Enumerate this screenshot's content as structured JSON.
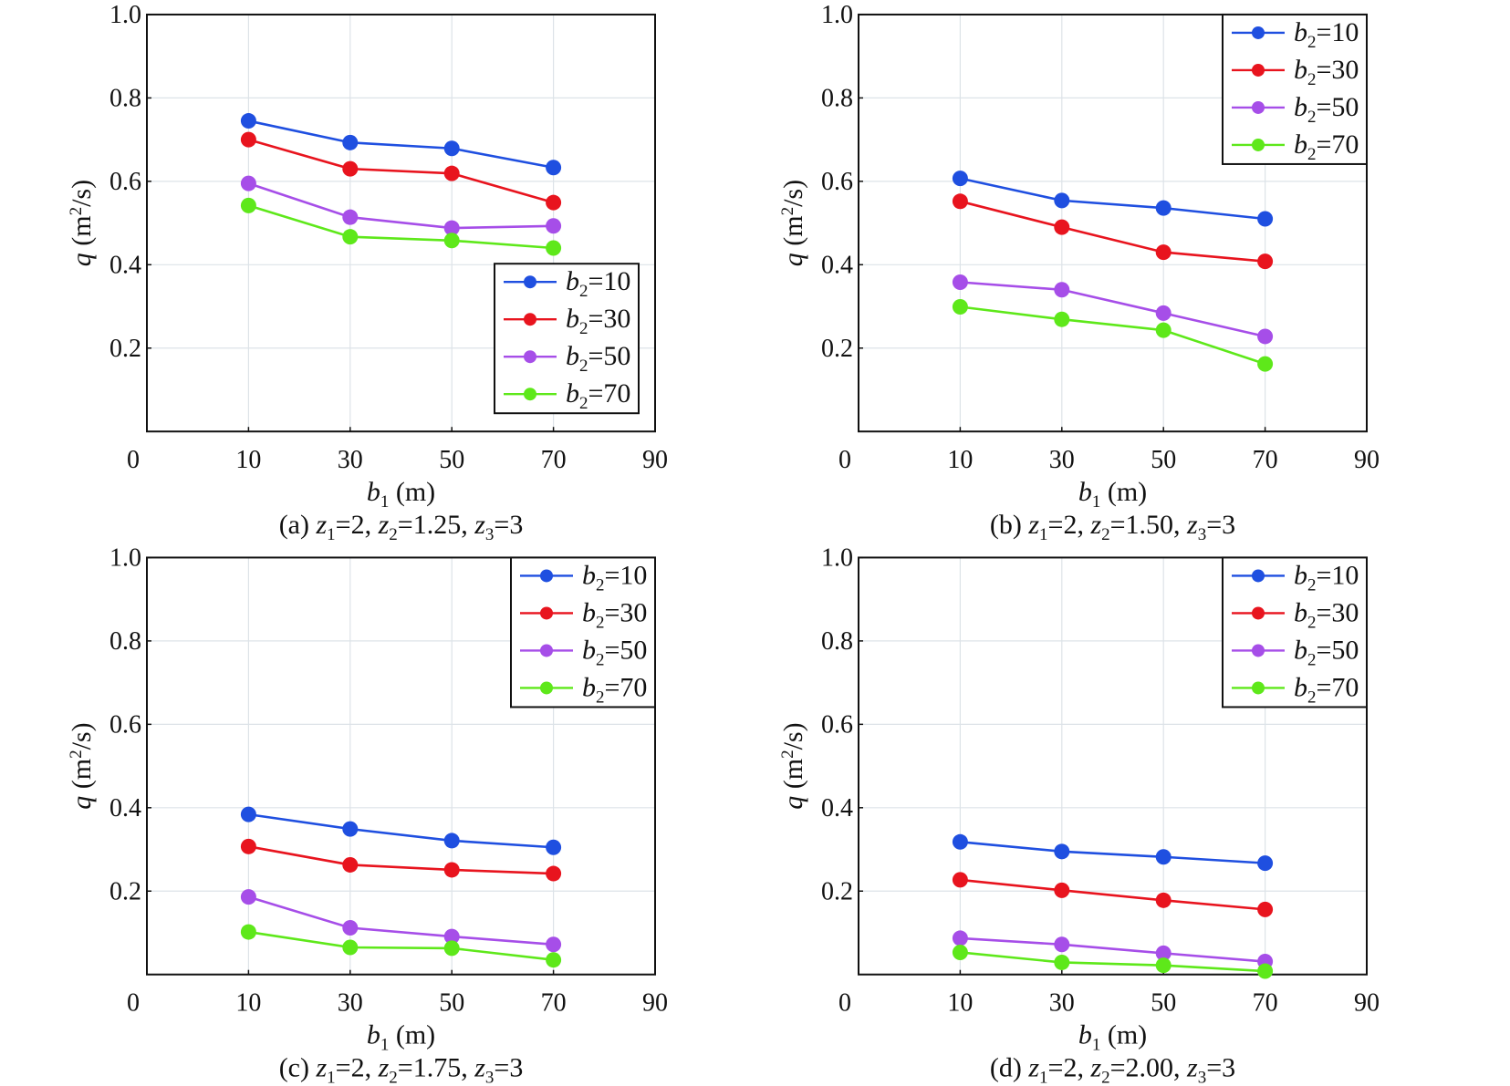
{
  "chart_data": [
    {
      "id": "a",
      "type": "line",
      "caption": {
        "prefix": "(a) ",
        "z1": "2",
        "z2": "1.25",
        "z3": "3"
      },
      "xlabel": {
        "var": "b",
        "sub": "1",
        "unit": " (m)"
      },
      "ylabel": {
        "var": "q",
        "unit_pre": " (m",
        "sup": "2",
        "unit_post": "/s)"
      },
      "x_tick_labels": [
        "0",
        "10",
        "30",
        "50",
        "70",
        "90"
      ],
      "x": [
        10,
        30,
        50,
        70
      ],
      "ylim": [
        0,
        1.0
      ],
      "y_ticks": [
        "0.2",
        "0.4",
        "0.6",
        "0.8",
        "1.0"
      ],
      "grid": true,
      "legend_position": "bottom-right",
      "series": [
        {
          "name": "b2=10",
          "label_var": "b",
          "label_sub": "2",
          "label_val": "=10",
          "color": "#1f4fe0",
          "values": [
            0.745,
            0.693,
            0.679,
            0.633
          ]
        },
        {
          "name": "b2=30",
          "label_var": "b",
          "label_sub": "2",
          "label_val": "=30",
          "color": "#e8141e",
          "values": [
            0.7,
            0.63,
            0.619,
            0.549
          ]
        },
        {
          "name": "b2=50",
          "label_var": "b",
          "label_sub": "2",
          "label_val": "=50",
          "color": "#a64ee8",
          "values": [
            0.595,
            0.514,
            0.488,
            0.493
          ]
        },
        {
          "name": "b2=70",
          "label_var": "b",
          "label_sub": "2",
          "label_val": "=70",
          "color": "#5ee81a",
          "values": [
            0.542,
            0.467,
            0.458,
            0.44
          ]
        }
      ]
    },
    {
      "id": "b",
      "type": "line",
      "caption": {
        "prefix": "(b) ",
        "z1": "2",
        "z2": "1.50",
        "z3": "3"
      },
      "xlabel": {
        "var": "b",
        "sub": "1",
        "unit": " (m)"
      },
      "ylabel": {
        "var": "q",
        "unit_pre": " (m",
        "sup": "2",
        "unit_post": "/s)"
      },
      "x_tick_labels": [
        "0",
        "10",
        "30",
        "50",
        "70",
        "90"
      ],
      "x": [
        10,
        30,
        50,
        70
      ],
      "ylim": [
        0,
        1.0
      ],
      "y_ticks": [
        "0.2",
        "0.4",
        "0.6",
        "0.8",
        "1.0"
      ],
      "grid": true,
      "legend_position": "top-right",
      "series": [
        {
          "name": "b2=10",
          "label_var": "b",
          "label_sub": "2",
          "label_val": "=10",
          "color": "#1f4fe0",
          "values": [
            0.607,
            0.554,
            0.536,
            0.51
          ]
        },
        {
          "name": "b2=30",
          "label_var": "b",
          "label_sub": "2",
          "label_val": "=30",
          "color": "#e8141e",
          "values": [
            0.552,
            0.49,
            0.43,
            0.408
          ]
        },
        {
          "name": "b2=50",
          "label_var": "b",
          "label_sub": "2",
          "label_val": "=50",
          "color": "#a64ee8",
          "values": [
            0.358,
            0.34,
            0.284,
            0.228
          ]
        },
        {
          "name": "b2=70",
          "label_var": "b",
          "label_sub": "2",
          "label_val": "=70",
          "color": "#5ee81a",
          "values": [
            0.299,
            0.269,
            0.243,
            0.162
          ]
        }
      ]
    },
    {
      "id": "c",
      "type": "line",
      "caption": {
        "prefix": "(c) ",
        "z1": "2",
        "z2": "1.75",
        "z3": "3"
      },
      "xlabel": {
        "var": "b",
        "sub": "1",
        "unit": " (m)"
      },
      "ylabel": {
        "var": "q",
        "unit_pre": " (m",
        "sup": "2",
        "unit_post": "/s)"
      },
      "x_tick_labels": [
        "0",
        "10",
        "30",
        "50",
        "70",
        "90"
      ],
      "x": [
        10,
        30,
        50,
        70
      ],
      "ylim": [
        0,
        1.0
      ],
      "y_ticks": [
        "0.2",
        "0.4",
        "0.6",
        "0.8",
        "1.0"
      ],
      "grid": true,
      "legend_position": "top-right",
      "series": [
        {
          "name": "b2=10",
          "label_var": "b",
          "label_sub": "2",
          "label_val": "=10",
          "color": "#1f4fe0",
          "values": [
            0.384,
            0.349,
            0.321,
            0.305
          ]
        },
        {
          "name": "b2=30",
          "label_var": "b",
          "label_sub": "2",
          "label_val": "=30",
          "color": "#e8141e",
          "values": [
            0.307,
            0.263,
            0.251,
            0.242
          ]
        },
        {
          "name": "b2=50",
          "label_var": "b",
          "label_sub": "2",
          "label_val": "=50",
          "color": "#a64ee8",
          "values": [
            0.186,
            0.112,
            0.091,
            0.072
          ]
        },
        {
          "name": "b2=70",
          "label_var": "b",
          "label_sub": "2",
          "label_val": "=70",
          "color": "#5ee81a",
          "values": [
            0.102,
            0.065,
            0.063,
            0.035
          ]
        }
      ]
    },
    {
      "id": "d",
      "type": "line",
      "caption": {
        "prefix": "(d) ",
        "z1": "2",
        "z2": "2.00",
        "z3": "3"
      },
      "xlabel": {
        "var": "b",
        "sub": "1",
        "unit": " (m)"
      },
      "ylabel": {
        "var": "q",
        "unit_pre": " (m",
        "sup": "2",
        "unit_post": "/s)"
      },
      "x_tick_labels": [
        "0",
        "10",
        "30",
        "50",
        "70",
        "90"
      ],
      "x": [
        10,
        30,
        50,
        70
      ],
      "ylim": [
        0,
        1.0
      ],
      "y_ticks": [
        "0.2",
        "0.4",
        "0.6",
        "0.8",
        "1.0"
      ],
      "grid": true,
      "legend_position": "top-right",
      "series": [
        {
          "name": "b2=10",
          "label_var": "b",
          "label_sub": "2",
          "label_val": "=10",
          "color": "#1f4fe0",
          "values": [
            0.318,
            0.295,
            0.282,
            0.267
          ]
        },
        {
          "name": "b2=30",
          "label_var": "b",
          "label_sub": "2",
          "label_val": "=30",
          "color": "#e8141e",
          "values": [
            0.227,
            0.202,
            0.178,
            0.156
          ]
        },
        {
          "name": "b2=50",
          "label_var": "b",
          "label_sub": "2",
          "label_val": "=50",
          "color": "#a64ee8",
          "values": [
            0.087,
            0.072,
            0.051,
            0.031
          ]
        },
        {
          "name": "b2=70",
          "label_var": "b",
          "label_sub": "2",
          "label_val": "=70",
          "color": "#5ee81a",
          "values": [
            0.053,
            0.029,
            0.022,
            0.008
          ]
        }
      ]
    }
  ]
}
